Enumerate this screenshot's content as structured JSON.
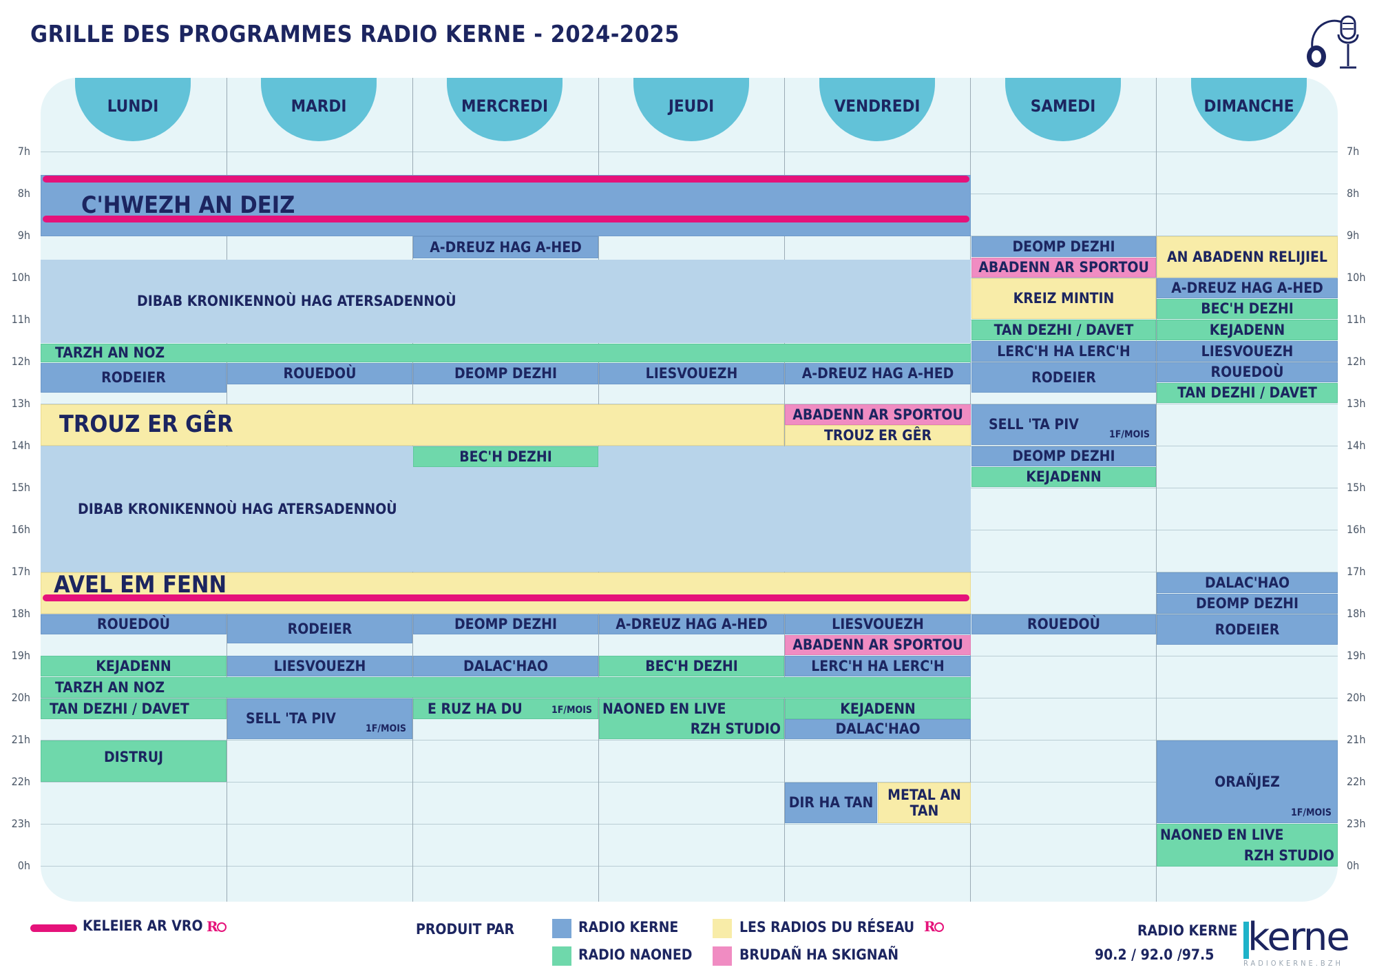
{
  "title": "GRILLE DES PROGRAMMES RADIO KERNE - 2024-2025",
  "days": [
    "LUNDI",
    "MARDI",
    "MERCREDI",
    "JEUDI",
    "VENDREDI",
    "SAMEDI",
    "DIMANCHE"
  ],
  "hours": [
    "7h",
    "8h",
    "9h",
    "10h",
    "11h",
    "12h",
    "13h",
    "14h",
    "15h",
    "16h",
    "17h",
    "18h",
    "19h",
    "20h",
    "21h",
    "22h",
    "23h",
    "0h"
  ],
  "colors": {
    "radio_kerne": "#7aa6d6",
    "radio_naoned": "#6fd8ab",
    "reseau": "#f8eca8",
    "brudan": "#f08cc2",
    "keleier": "#e5127a",
    "tab": "#62c2d8"
  },
  "programs": {
    "chwezh": "C'HWEZH AN DEIZ",
    "dibab": "DIBAB KRONIKENNOÙ HAG ATERSADENNOÙ",
    "adreuz": "A-DREUZ HAG A-HED",
    "deomp": "DEOMP DEZHI",
    "abadenn_sport": "ABADENN AR SPORTOU",
    "abadenn_reli": "AN ABADENN RELIJIEL",
    "kreiz": "KREIZ MINTIN",
    "bech": "BEC'H DEZHI",
    "tan_davet": "TAN DEZHI /   DAVET",
    "kejadenn": "KEJADENN",
    "tarzh": "TARZH AN NOZ",
    "lerch": "LERC'H HA LERC'H",
    "liesvouezh": "LIESVOUEZH",
    "rodeier": "RODEIER",
    "rouedou": "ROUEDOÙ",
    "trouz": "TROUZ ER GÊR",
    "sell": "SELL 'TA PIV",
    "avel": "AVEL EM FENN",
    "dalachao": "DALAC'HAO",
    "eruz": "E RUZ HA DU",
    "naoned_live": "NAONED EN LIVE",
    "rzh": "RZH STUDIO",
    "distruj": "DISTRUJ",
    "dir_ha_tan": "DIR HA TAN",
    "metal": "METAL AN TAN",
    "oranjez": "ORAÑJEZ",
    "monthly": "1F/MOIS"
  },
  "legend": {
    "keleier": "KELEIER AR VRO",
    "produit_par": "PRODUIT PAR",
    "radio_kerne": "RADIO KERNE",
    "radio_naoned": "RADIO NAONED",
    "reseau": "LES RADIOS DU RÉSEAU",
    "brudan": "BRUDAÑ HA SKIGNAÑ"
  },
  "footer": {
    "station": "RADIO KERNE",
    "frequencies": "90.2 / 92.0 /97.5",
    "brand": "kerne",
    "site": "RADIOKERNE.BZH"
  }
}
